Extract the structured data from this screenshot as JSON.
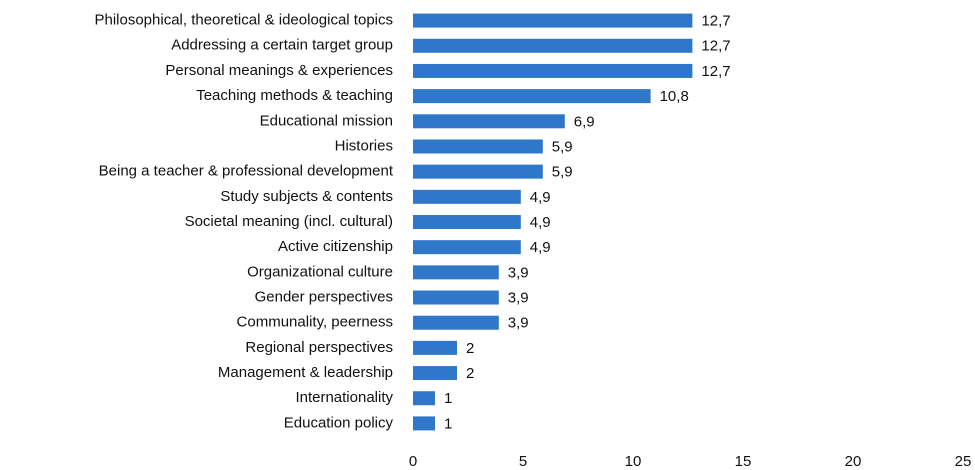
{
  "chart_data": {
    "type": "bar",
    "orientation": "horizontal",
    "categories": [
      "Philosophical, theoretical & ideological topics",
      "Addressing a certain target group",
      "Personal meanings & experiences",
      "Teaching methods & teaching",
      "Educational mission",
      "Histories",
      "Being a teacher & professional development",
      "Study subjects & contents",
      "Societal meaning (incl. cultural)",
      "Active citizenship",
      "Organizational culture",
      "Gender perspectives",
      "Communality, peerness",
      "Regional perspectives",
      "Management & leadership",
      "Internationality",
      "Education policy"
    ],
    "values": [
      12.7,
      12.7,
      12.7,
      10.8,
      6.9,
      5.9,
      5.9,
      4.9,
      4.9,
      4.9,
      3.9,
      3.9,
      3.9,
      2,
      2,
      1,
      1
    ],
    "value_labels": [
      "12,7",
      "12,7",
      "12,7",
      "10,8",
      "6,9",
      "5,9",
      "5,9",
      "4,9",
      "4,9",
      "4,9",
      "3,9",
      "3,9",
      "3,9",
      "2",
      "2",
      "1",
      "1"
    ],
    "color": "#2f77c8",
    "xlim": [
      0,
      25
    ],
    "xticks": [
      0,
      5,
      10,
      15,
      20,
      25
    ],
    "grid": false
  }
}
